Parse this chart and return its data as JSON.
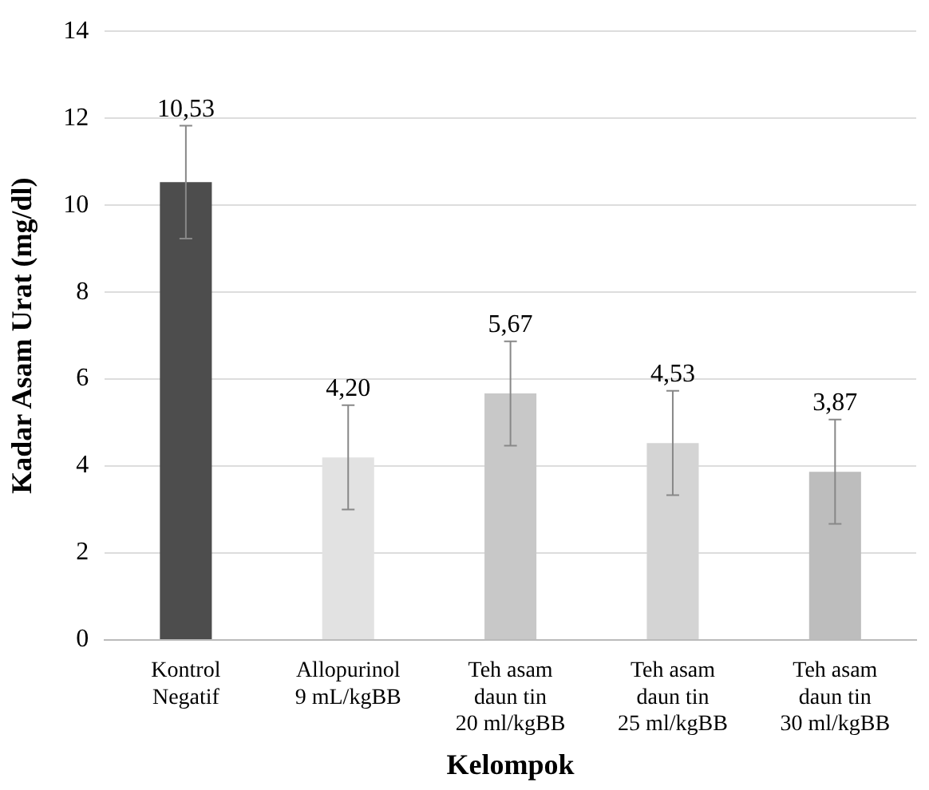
{
  "chart_data": {
    "type": "bar",
    "xlabel": "Kelompok",
    "ylabel": "Kadar Asam Urat (mg/dl)",
    "categories": [
      "Kontrol\nNegatif",
      "Allopurinol\n9 mL/kgBB",
      "Teh asam\ndaun tin\n20 ml/kgBB",
      "Teh asam\ndaun tin\n25 ml/kgBB",
      "Teh asam\ndaun tin\n30 ml/kgBB"
    ],
    "values": [
      10.53,
      4.2,
      5.67,
      4.53,
      3.87
    ],
    "value_labels": [
      "10,53",
      "4,20",
      "5,67",
      "4,53",
      "3,87"
    ],
    "errors": [
      1.3,
      1.2,
      1.2,
      1.2,
      1.2
    ],
    "colors": [
      "#4d4d4d",
      "#e2e2e2",
      "#c8c8c8",
      "#d4d4d4",
      "#bdbdbd"
    ],
    "ylim": [
      0,
      14
    ],
    "yticks": [
      0,
      2,
      4,
      6,
      8,
      10,
      12,
      14
    ],
    "grid": "y",
    "legend": false
  }
}
